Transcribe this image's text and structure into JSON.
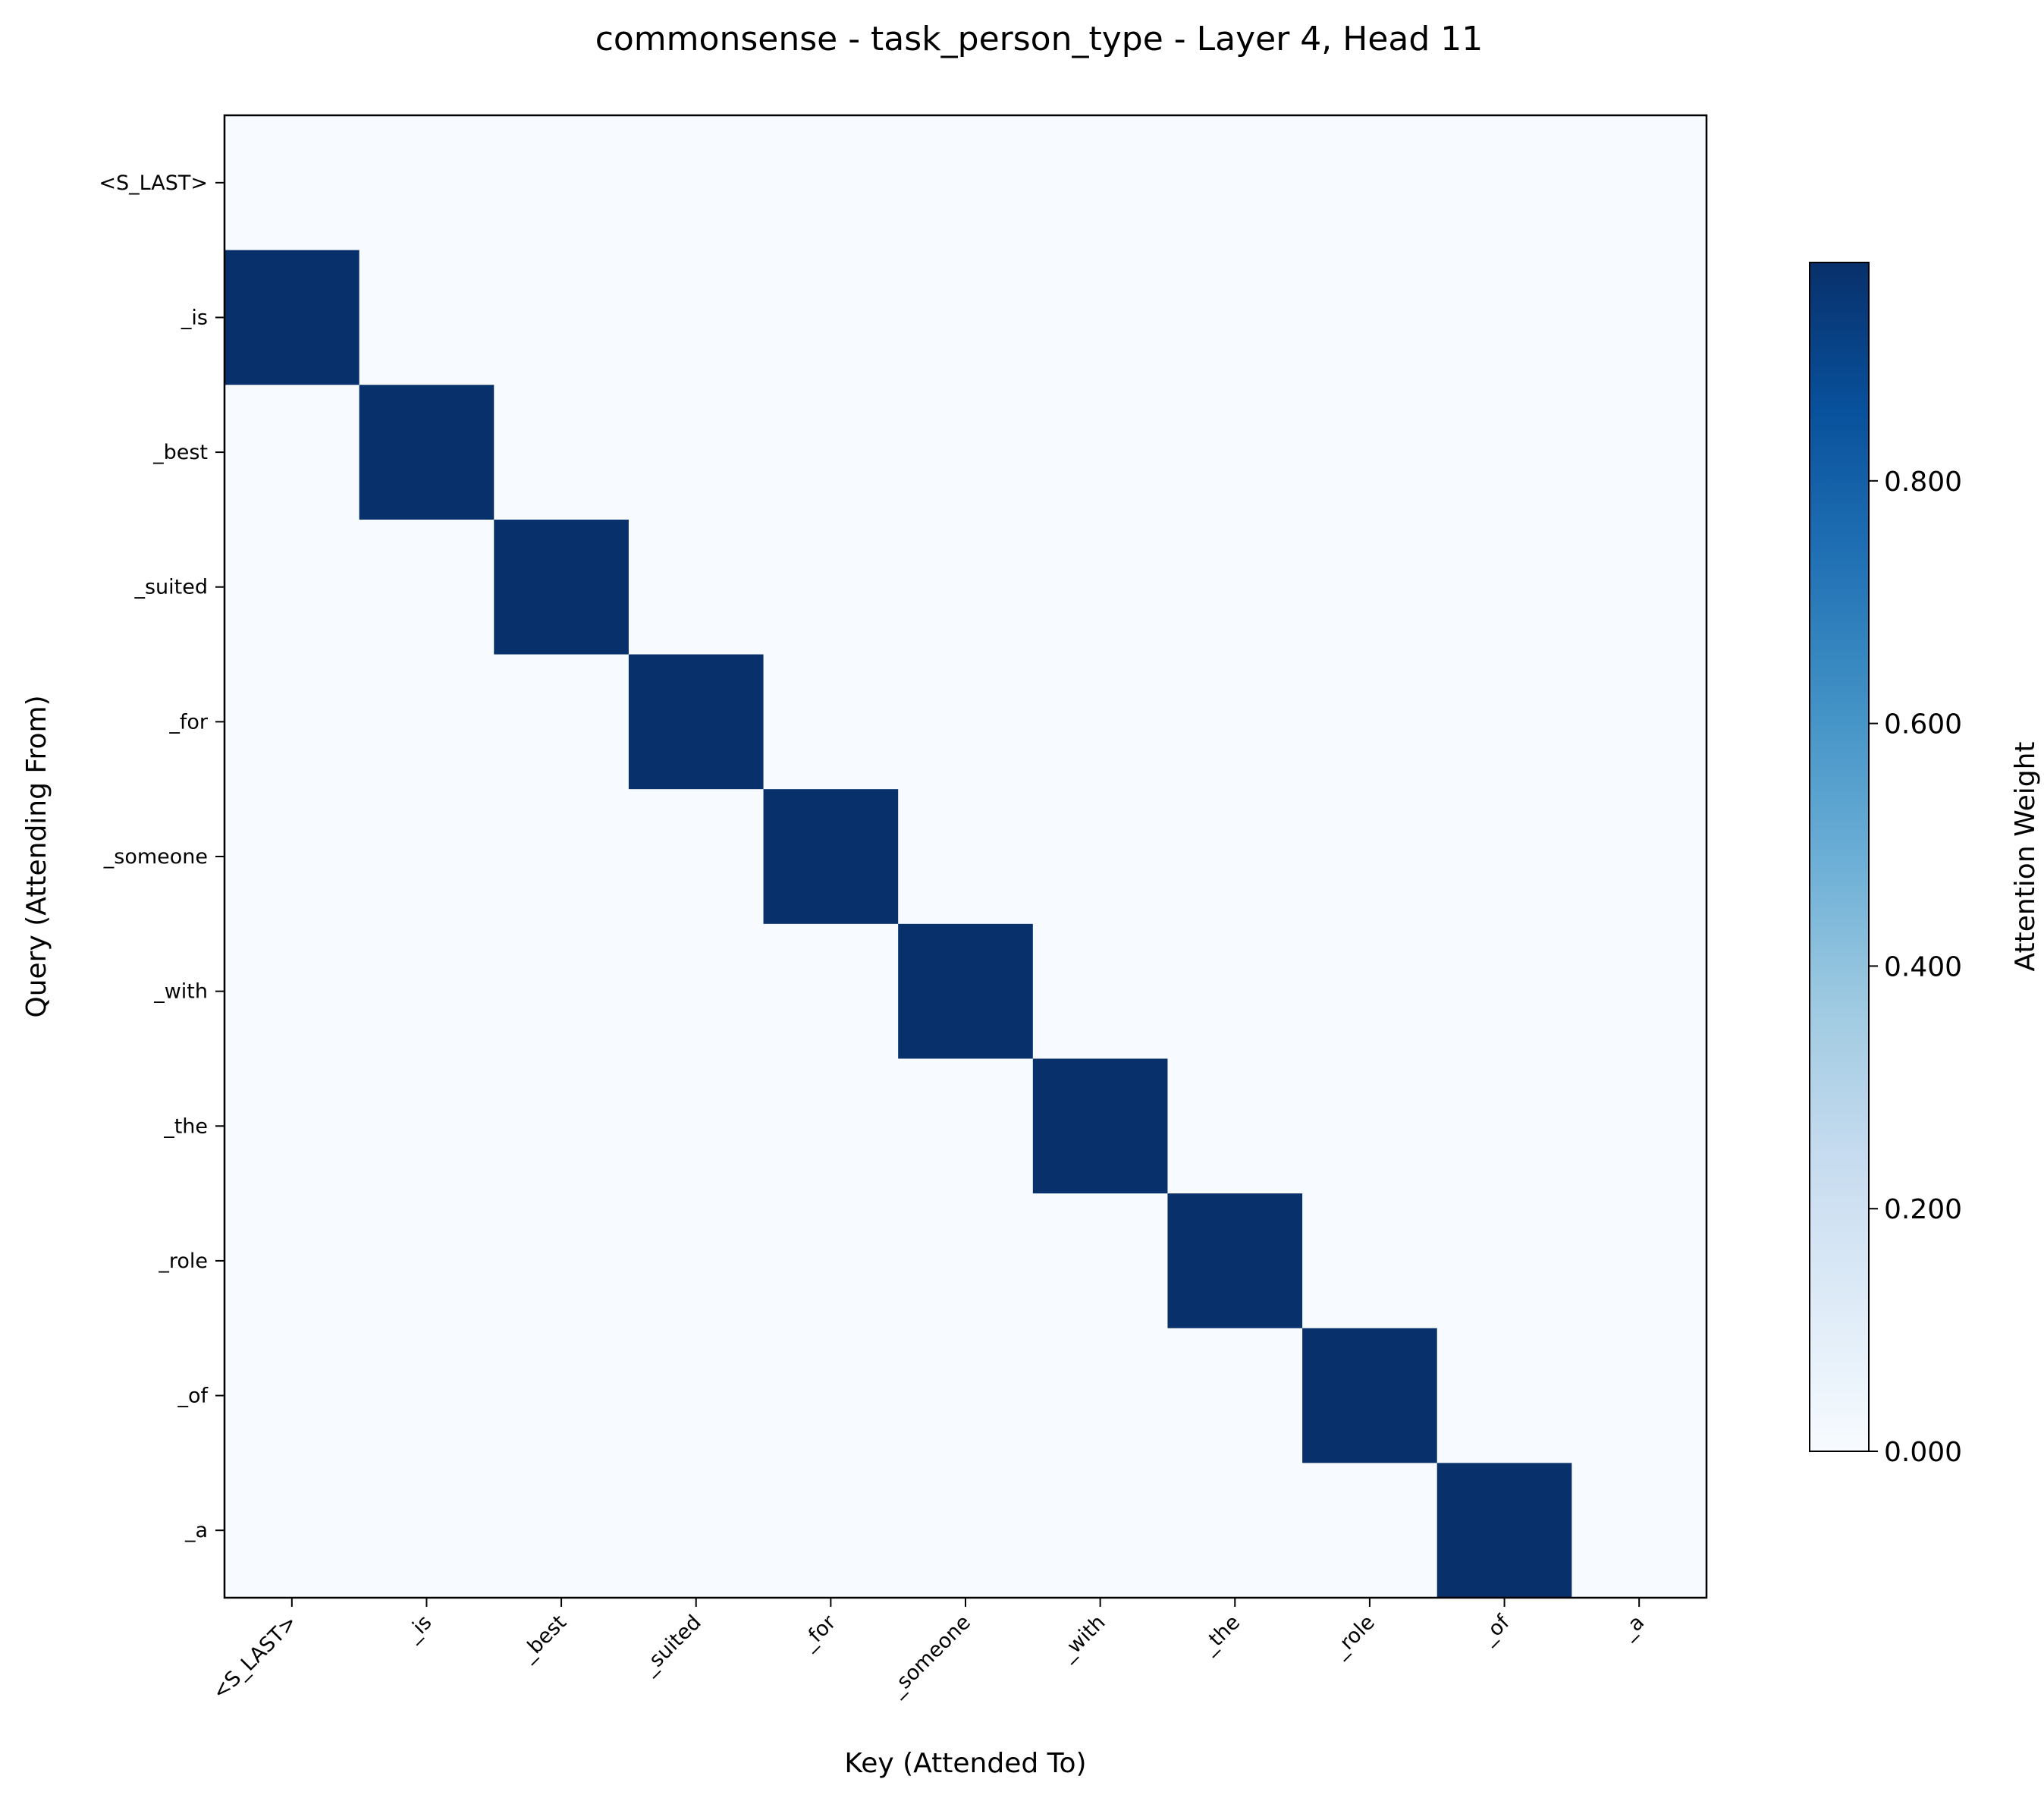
{
  "chart_data": {
    "type": "heatmap",
    "title": "commonsense - task_person_type - Layer 4, Head 11",
    "xlabel": "Key (Attended To)",
    "ylabel": "Query (Attending From)",
    "x_tokens": [
      "<S_LAST>",
      "_is",
      "_best",
      "_suited",
      "_for",
      "_someone",
      "_with",
      "_the",
      "_role",
      "_of",
      "_a"
    ],
    "y_tokens": [
      "<S_LAST>",
      "_is",
      "_best",
      "_suited",
      "_for",
      "_someone",
      "_with",
      "_the",
      "_role",
      "_of",
      "_a"
    ],
    "values": [
      [
        0.0,
        0.0,
        0.0,
        0.0,
        0.0,
        0.0,
        0.0,
        0.0,
        0.0,
        0.0,
        0.0
      ],
      [
        0.98,
        0.0,
        0.0,
        0.0,
        0.0,
        0.0,
        0.0,
        0.0,
        0.0,
        0.0,
        0.0
      ],
      [
        0.0,
        0.98,
        0.0,
        0.0,
        0.0,
        0.0,
        0.0,
        0.0,
        0.0,
        0.0,
        0.0
      ],
      [
        0.0,
        0.0,
        0.98,
        0.0,
        0.0,
        0.0,
        0.0,
        0.0,
        0.0,
        0.0,
        0.0
      ],
      [
        0.0,
        0.0,
        0.0,
        0.98,
        0.0,
        0.0,
        0.0,
        0.0,
        0.0,
        0.0,
        0.0
      ],
      [
        0.0,
        0.0,
        0.0,
        0.0,
        0.98,
        0.0,
        0.0,
        0.0,
        0.0,
        0.0,
        0.0
      ],
      [
        0.0,
        0.0,
        0.0,
        0.0,
        0.0,
        0.98,
        0.0,
        0.0,
        0.0,
        0.0,
        0.0
      ],
      [
        0.0,
        0.0,
        0.0,
        0.0,
        0.0,
        0.0,
        0.98,
        0.0,
        0.0,
        0.0,
        0.0
      ],
      [
        0.0,
        0.0,
        0.0,
        0.0,
        0.0,
        0.0,
        0.0,
        0.98,
        0.0,
        0.0,
        0.0
      ],
      [
        0.0,
        0.0,
        0.0,
        0.0,
        0.0,
        0.0,
        0.0,
        0.0,
        0.98,
        0.0,
        0.0
      ],
      [
        0.0,
        0.0,
        0.0,
        0.0,
        0.0,
        0.0,
        0.0,
        0.0,
        0.0,
        0.98,
        0.0
      ]
    ],
    "colorbar": {
      "label": "Attention Weight",
      "range": [
        0,
        0.98
      ],
      "ticks": [
        0.0,
        0.2,
        0.4,
        0.6,
        0.8
      ],
      "tick_labels": [
        "0.000",
        "0.200",
        "0.400",
        "0.600",
        "0.800"
      ],
      "colormap": "Blues",
      "low_color": "#f7fbff",
      "high_color": "#08306b"
    },
    "grid": false
  }
}
